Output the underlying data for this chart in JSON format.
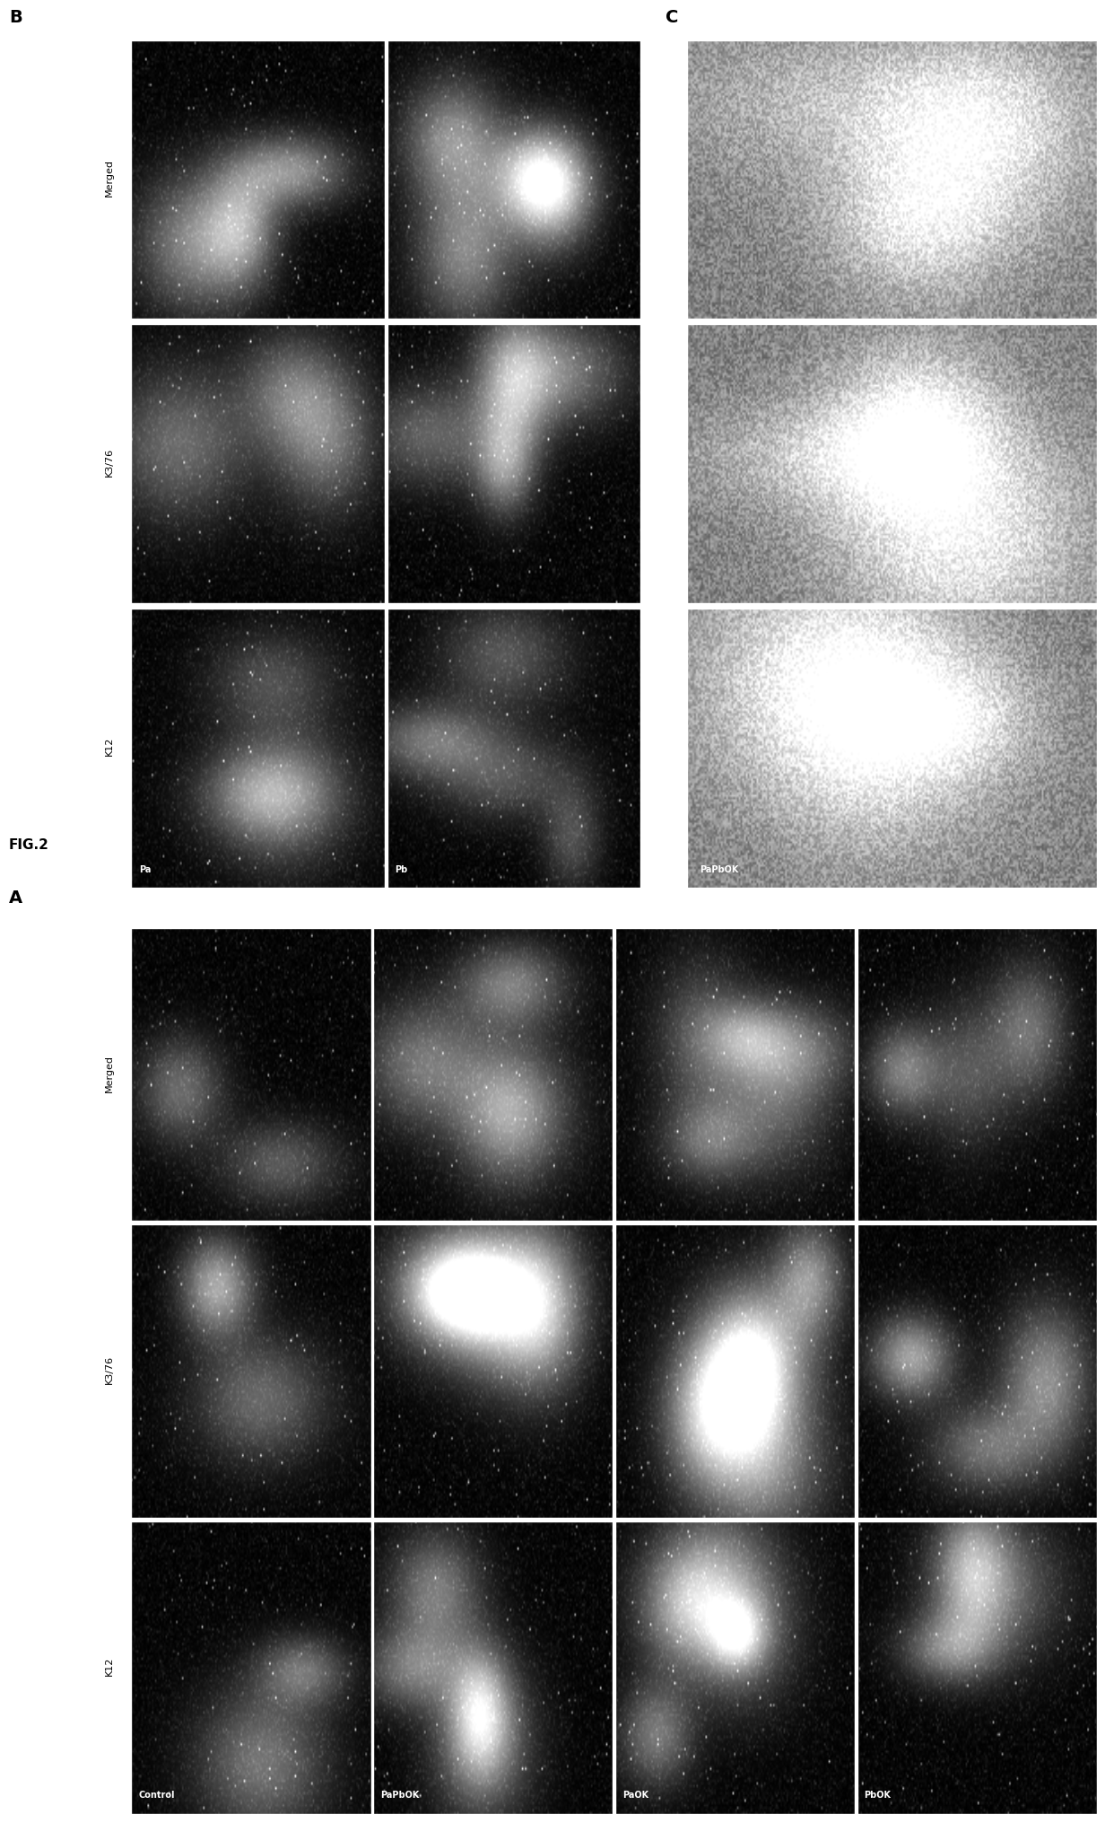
{
  "title": "FIG.2",
  "panel_A_label": "A",
  "panel_B_label": "B",
  "panel_C_label": "C",
  "panel_A": {
    "row_headers": [
      "K12",
      "K3/76",
      "Merged"
    ],
    "col_labels": [
      "Control",
      "PaPbOK",
      "PaOK",
      "PbOK"
    ],
    "rows": 3,
    "cols": 4
  },
  "panel_B": {
    "row_headers": [
      "K12",
      "K3/76",
      "Merged"
    ],
    "col_labels": [
      "Pa",
      "Pb"
    ],
    "rows": 3,
    "cols": 2
  },
  "panel_C": {
    "col_label": "PaPbOK",
    "rows": 3,
    "cols": 1
  },
  "bg_color": "#ffffff"
}
